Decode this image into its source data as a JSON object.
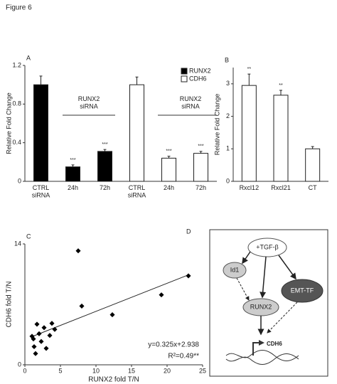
{
  "figure_label": "Figure 6",
  "chart_data": [
    {
      "type": "bar",
      "panel_label": "A",
      "y_label": "Relative Fold Change",
      "categories": [
        "CTRL siRNA",
        "24h",
        "72h",
        "CTRL siRNA",
        "24h",
        "72h"
      ],
      "series": [
        {
          "name": "RUNX2",
          "color": "#000000",
          "values": [
            1.0,
            0.15,
            0.31,
            null,
            null,
            null
          ],
          "errors": [
            0.09,
            0.02,
            0.02,
            null,
            null,
            null
          ],
          "significance": [
            null,
            "***",
            "***",
            null,
            null,
            null
          ]
        },
        {
          "name": "CDH6",
          "color": "#ffffff",
          "values": [
            null,
            null,
            null,
            1.0,
            0.24,
            0.29
          ],
          "errors": [
            null,
            null,
            null,
            0.08,
            0.02,
            0.02
          ],
          "significance": [
            null,
            null,
            null,
            null,
            "***",
            "***"
          ]
        }
      ],
      "group_labels": [
        "RUNX2 siRNA",
        "RUNX2 siRNA"
      ],
      "ylim": [
        0,
        1.2
      ],
      "yticks": [
        0,
        0.4,
        0.8,
        1.2
      ],
      "legend": "top-right"
    },
    {
      "type": "bar",
      "panel_label": "B",
      "y_label": "Relative Fold Change",
      "categories": [
        "Rxcl12",
        "Rxcl21",
        "CT"
      ],
      "color": "#ffffff",
      "values": [
        2.95,
        2.65,
        1.0
      ],
      "errors": [
        0.35,
        0.15,
        0.07
      ],
      "significance": [
        "**",
        "**",
        null
      ],
      "ylim": [
        0,
        3.5
      ],
      "yticks": [
        0,
        1,
        2,
        3
      ]
    },
    {
      "type": "scatter",
      "panel_label": "C",
      "x_label": "RUNX2 fold T/N",
      "y_label": "CDH6 fold T/N",
      "color": "#000000",
      "x": [
        7.5,
        8.0,
        12.3,
        19.2,
        23.0,
        1.0,
        1.3,
        1.5,
        1.7,
        2.0,
        2.3,
        2.7,
        3.0,
        3.5,
        3.8,
        4.2,
        1.2
      ],
      "values": [
        13.2,
        6.8,
        5.8,
        8.1,
        10.3,
        3.3,
        2.1,
        1.3,
        4.7,
        3.6,
        2.7,
        4.3,
        1.9,
        3.4,
        4.8,
        4.1,
        3.0
      ],
      "trendline": {
        "slope": 0.325,
        "intercept": 2.938
      },
      "annotations": [
        "y=0.325x+2.938",
        "R²=0.49**"
      ],
      "xlim": [
        0,
        25
      ],
      "xticks": [
        0,
        5,
        10,
        15,
        20,
        25
      ],
      "ylim": [
        0,
        14
      ],
      "yticks": [
        0,
        14
      ]
    }
  ],
  "diagram": {
    "panel_label": "D",
    "nodes": [
      {
        "label": "+TGF-β"
      },
      {
        "label": "Id1"
      },
      {
        "label": "EMT-TF"
      },
      {
        "label": "RUNX2"
      },
      {
        "label": "CDH6"
      }
    ]
  }
}
